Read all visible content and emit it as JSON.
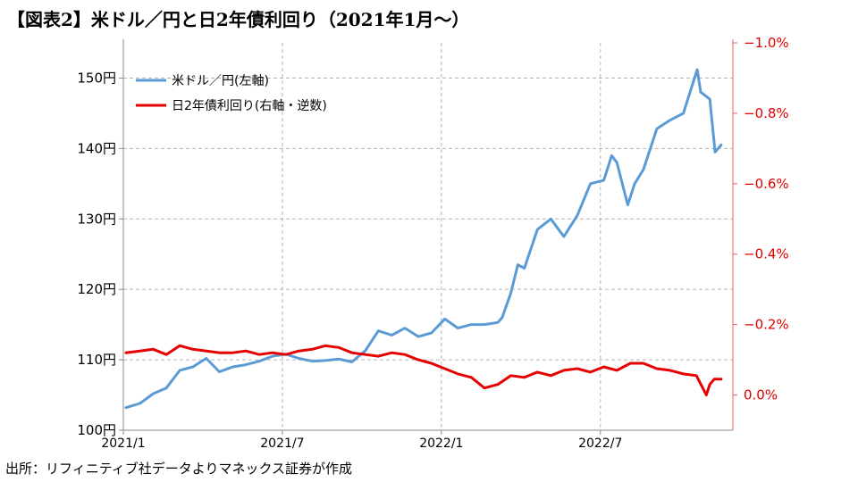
{
  "title": "【図表2】米ドル／円と日2年債利回り（2021年1月～）",
  "source": "出所：リフィニティブ社データよりマネックス証券が作成",
  "chart_data": {
    "type": "line",
    "x_tick_labels": [
      "2021/1",
      "2021/7",
      "2022/1",
      "2022/7"
    ],
    "x_range": [
      "2021-01",
      "2022-12"
    ],
    "left_axis": {
      "ylim": [
        100,
        155
      ],
      "ticks": [
        100,
        110,
        120,
        130,
        140,
        150
      ],
      "tick_labels": [
        "100円",
        "110円",
        "120円",
        "130円",
        "140円",
        "150円"
      ]
    },
    "right_axis": {
      "inverted": true,
      "ylim": [
        0.1,
        -1.0
      ],
      "ticks": [
        0.0,
        -0.2,
        -0.4,
        -0.6,
        -0.8,
        -1.0
      ],
      "tick_labels": [
        "0.0%",
        "−0.2%",
        "−0.4%",
        "−0.6%",
        "−0.8%",
        "−1.0%"
      ],
      "color": "#e00000"
    },
    "grid": true,
    "legend_position": "top-left",
    "series": [
      {
        "name": "米ドル／円(左軸)",
        "axis": "left",
        "color": "#5b9bd5",
        "x": [
          "2021-01-04",
          "2021-01-20",
          "2021-02-05",
          "2021-02-20",
          "2021-03-05",
          "2021-03-20",
          "2021-04-05",
          "2021-04-20",
          "2021-05-05",
          "2021-05-20",
          "2021-06-05",
          "2021-06-20",
          "2021-07-05",
          "2021-07-20",
          "2021-08-05",
          "2021-08-20",
          "2021-09-05",
          "2021-09-20",
          "2021-10-05",
          "2021-10-20",
          "2021-11-05",
          "2021-11-20",
          "2021-12-05",
          "2021-12-20",
          "2022-01-05",
          "2022-01-20",
          "2022-02-05",
          "2022-02-20",
          "2022-03-05",
          "2022-03-10",
          "2022-03-20",
          "2022-03-28",
          "2022-04-05",
          "2022-04-20",
          "2022-05-05",
          "2022-05-20",
          "2022-06-05",
          "2022-06-20",
          "2022-07-05",
          "2022-07-14",
          "2022-07-20",
          "2022-08-02",
          "2022-08-10",
          "2022-08-20",
          "2022-09-05",
          "2022-09-20",
          "2022-10-05",
          "2022-10-21",
          "2022-10-25",
          "2022-11-05",
          "2022-11-11",
          "2022-11-18"
        ],
        "y": [
          103.2,
          103.8,
          105.2,
          106.0,
          108.5,
          109.0,
          110.2,
          108.3,
          109.0,
          109.3,
          109.8,
          110.5,
          110.8,
          110.2,
          109.8,
          109.9,
          110.1,
          109.7,
          111.3,
          114.1,
          113.5,
          114.5,
          113.3,
          113.8,
          115.8,
          114.5,
          115.0,
          115.0,
          115.3,
          116.0,
          119.5,
          123.5,
          123.0,
          128.5,
          130.0,
          127.5,
          130.5,
          135.0,
          135.5,
          139.0,
          138.0,
          132.0,
          135.0,
          137.0,
          142.8,
          144.0,
          145.0,
          151.2,
          148.0,
          147.0,
          139.5,
          140.5
        ]
      },
      {
        "name": "日2年債利回り(右軸・逆数)",
        "axis": "right",
        "color": "#e60000",
        "x": [
          "2021-01-04",
          "2021-01-20",
          "2021-02-05",
          "2021-02-20",
          "2021-03-05",
          "2021-03-20",
          "2021-04-05",
          "2021-04-20",
          "2021-05-05",
          "2021-05-20",
          "2021-06-05",
          "2021-06-20",
          "2021-07-05",
          "2021-07-20",
          "2021-08-05",
          "2021-08-20",
          "2021-09-05",
          "2021-09-20",
          "2021-10-05",
          "2021-10-20",
          "2021-11-05",
          "2021-11-20",
          "2021-12-05",
          "2021-12-20",
          "2022-01-05",
          "2022-01-20",
          "2022-02-05",
          "2022-02-20",
          "2022-03-05",
          "2022-03-20",
          "2022-04-05",
          "2022-04-20",
          "2022-05-05",
          "2022-05-20",
          "2022-06-05",
          "2022-06-20",
          "2022-07-05",
          "2022-07-20",
          "2022-08-05",
          "2022-08-20",
          "2022-09-05",
          "2022-09-20",
          "2022-10-05",
          "2022-10-20",
          "2022-11-01",
          "2022-11-05",
          "2022-11-10",
          "2022-11-18"
        ],
        "y": [
          -0.12,
          -0.125,
          -0.13,
          -0.115,
          -0.14,
          -0.13,
          -0.125,
          -0.12,
          -0.12,
          -0.125,
          -0.115,
          -0.12,
          -0.115,
          -0.125,
          -0.13,
          -0.14,
          -0.135,
          -0.12,
          -0.115,
          -0.11,
          -0.12,
          -0.115,
          -0.1,
          -0.09,
          -0.075,
          -0.06,
          -0.05,
          -0.02,
          -0.03,
          -0.055,
          -0.05,
          -0.065,
          -0.055,
          -0.07,
          -0.075,
          -0.065,
          -0.08,
          -0.07,
          -0.09,
          -0.09,
          -0.075,
          -0.07,
          -0.06,
          -0.055,
          -0.0,
          -0.03,
          -0.045,
          -0.045
        ]
      }
    ]
  }
}
